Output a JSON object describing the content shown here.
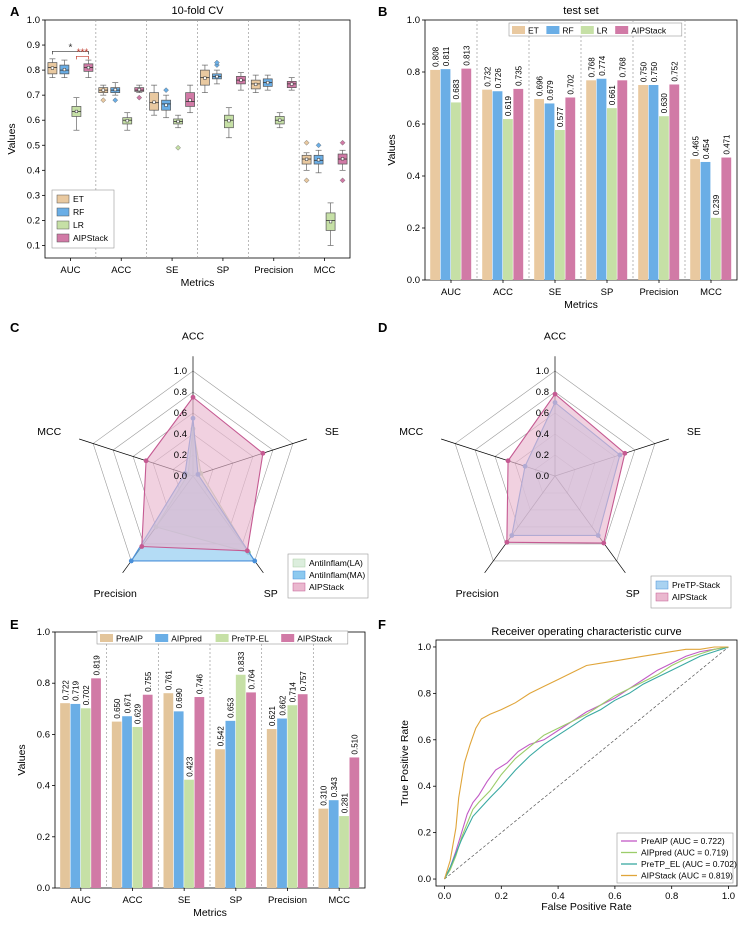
{
  "figure": {
    "panel_labels": [
      "A",
      "B",
      "C",
      "D",
      "E",
      "F"
    ],
    "colors": {
      "ET": "#e9c9a0",
      "RF": "#6aaee6",
      "LR": "#c6e0a6",
      "AIPStack": "#d17aa6",
      "PreAIP": "#e3c59b",
      "AIPpred": "#6aaee6",
      "PreTP-EL": "#c6e0a6",
      "sig_black": "#333333",
      "sig_red": "#c0392b"
    }
  },
  "chart_data": [
    {
      "id": "A",
      "type": "box",
      "title": "10-fold CV",
      "xlabel": "Metrics",
      "ylabel": "Values",
      "ylim": [
        0.05,
        1.0
      ],
      "yticks": [
        "0.1",
        "0.2",
        "0.3",
        "0.4",
        "0.5",
        "0.6",
        "0.7",
        "0.8",
        "0.9",
        "1.0"
      ],
      "categories": [
        "AUC",
        "ACC",
        "SE",
        "SP",
        "Precision",
        "MCC"
      ],
      "legend": [
        "ET",
        "RF",
        "LR",
        "AIPStack"
      ],
      "significance": [
        {
          "label": "*",
          "from": "ET",
          "to": "AIPStack",
          "color": "sig_black"
        },
        {
          "label": "***",
          "from": "LR",
          "to": "AIPStack",
          "color": "sig_red"
        }
      ],
      "series": [
        {
          "name": "ET",
          "boxes": [
            {
              "min": 0.77,
              "q1": 0.785,
              "med": 0.81,
              "q3": 0.83,
              "max": 0.845,
              "mean": 0.808,
              "out": []
            },
            {
              "min": 0.7,
              "q1": 0.71,
              "med": 0.72,
              "q3": 0.73,
              "max": 0.74,
              "mean": 0.72,
              "out": [
                0.68
              ]
            },
            {
              "min": 0.62,
              "q1": 0.64,
              "med": 0.67,
              "q3": 0.71,
              "max": 0.74,
              "mean": 0.672,
              "out": []
            },
            {
              "min": 0.71,
              "q1": 0.74,
              "med": 0.77,
              "q3": 0.8,
              "max": 0.82,
              "mean": 0.768,
              "out": []
            },
            {
              "min": 0.71,
              "q1": 0.725,
              "med": 0.745,
              "q3": 0.76,
              "max": 0.78,
              "mean": 0.743,
              "out": []
            },
            {
              "min": 0.4,
              "q1": 0.425,
              "med": 0.445,
              "q3": 0.46,
              "max": 0.47,
              "mean": 0.444,
              "out": [
                0.36,
                0.51
              ]
            }
          ]
        },
        {
          "name": "RF",
          "boxes": [
            {
              "min": 0.77,
              "q1": 0.785,
              "med": 0.8,
              "q3": 0.82,
              "max": 0.84,
              "mean": 0.802,
              "out": []
            },
            {
              "min": 0.7,
              "q1": 0.71,
              "med": 0.72,
              "q3": 0.73,
              "max": 0.75,
              "mean": 0.722,
              "out": [
                0.68
              ]
            },
            {
              "min": 0.61,
              "q1": 0.64,
              "med": 0.665,
              "q3": 0.68,
              "max": 0.7,
              "mean": 0.66,
              "out": [
                0.72
              ]
            },
            {
              "min": 0.745,
              "q1": 0.765,
              "med": 0.775,
              "q3": 0.785,
              "max": 0.8,
              "mean": 0.774,
              "out": [
                0.82,
                0.83
              ]
            },
            {
              "min": 0.72,
              "q1": 0.735,
              "med": 0.75,
              "q3": 0.765,
              "max": 0.78,
              "mean": 0.75,
              "out": []
            },
            {
              "min": 0.39,
              "q1": 0.425,
              "med": 0.44,
              "q3": 0.46,
              "max": 0.48,
              "mean": 0.442,
              "out": [
                0.5
              ]
            }
          ]
        },
        {
          "name": "LR",
          "boxes": [
            {
              "min": 0.56,
              "q1": 0.615,
              "med": 0.635,
              "q3": 0.655,
              "max": 0.69,
              "mean": 0.635,
              "out": []
            },
            {
              "min": 0.56,
              "q1": 0.585,
              "med": 0.6,
              "q3": 0.61,
              "max": 0.63,
              "mean": 0.598,
              "out": []
            },
            {
              "min": 0.57,
              "q1": 0.585,
              "med": 0.595,
              "q3": 0.605,
              "max": 0.62,
              "mean": 0.595,
              "out": [
                0.49
              ]
            },
            {
              "min": 0.53,
              "q1": 0.57,
              "med": 0.6,
              "q3": 0.62,
              "max": 0.65,
              "mean": 0.598,
              "out": []
            },
            {
              "min": 0.57,
              "q1": 0.585,
              "med": 0.6,
              "q3": 0.615,
              "max": 0.63,
              "mean": 0.6,
              "out": []
            },
            {
              "min": 0.1,
              "q1": 0.16,
              "med": 0.2,
              "q3": 0.23,
              "max": 0.27,
              "mean": 0.195,
              "out": []
            }
          ]
        },
        {
          "name": "AIPStack",
          "boxes": [
            {
              "min": 0.77,
              "q1": 0.795,
              "med": 0.81,
              "q3": 0.825,
              "max": 0.84,
              "mean": 0.81,
              "out": []
            },
            {
              "min": 0.71,
              "q1": 0.715,
              "med": 0.72,
              "q3": 0.73,
              "max": 0.74,
              "mean": 0.722,
              "out": [
                0.69
              ]
            },
            {
              "min": 0.63,
              "q1": 0.655,
              "med": 0.675,
              "q3": 0.71,
              "max": 0.74,
              "mean": 0.68,
              "out": []
            },
            {
              "min": 0.72,
              "q1": 0.745,
              "med": 0.76,
              "q3": 0.775,
              "max": 0.79,
              "mean": 0.76,
              "out": []
            },
            {
              "min": 0.72,
              "q1": 0.73,
              "med": 0.745,
              "q3": 0.755,
              "max": 0.77,
              "mean": 0.744,
              "out": []
            },
            {
              "min": 0.4,
              "q1": 0.425,
              "med": 0.445,
              "q3": 0.465,
              "max": 0.48,
              "mean": 0.446,
              "out": [
                0.36,
                0.51
              ]
            }
          ]
        }
      ]
    },
    {
      "id": "B",
      "type": "bar",
      "title": "test set",
      "xlabel": "Metrics",
      "ylabel": "Values",
      "ylim": [
        0.0,
        1.0
      ],
      "yticks": [
        "0.0",
        "0.2",
        "0.4",
        "0.6",
        "0.8",
        "1.0"
      ],
      "categories": [
        "AUC",
        "ACC",
        "SE",
        "SP",
        "Precision",
        "MCC"
      ],
      "series": [
        {
          "name": "ET",
          "values": [
            0.808,
            0.732,
            0.696,
            0.768,
            0.75,
            0.465
          ]
        },
        {
          "name": "RF",
          "values": [
            0.811,
            0.726,
            0.679,
            0.774,
            0.75,
            0.454
          ]
        },
        {
          "name": "LR",
          "values": [
            0.683,
            0.619,
            0.577,
            0.661,
            0.63,
            0.239
          ]
        },
        {
          "name": "AIPStack",
          "values": [
            0.813,
            0.735,
            0.702,
            0.768,
            0.752,
            0.471
          ]
        }
      ],
      "labels": [
        [
          "0.808",
          "0.732",
          "0.696",
          "0.768",
          "0.750",
          "0.465"
        ],
        [
          "0.811",
          "0.726",
          "0.679",
          "0.774",
          "0.750",
          "0.454"
        ],
        [
          "0.683",
          "0.619",
          "0.577",
          "0.661",
          "0.630",
          "0.239"
        ],
        [
          "0.813",
          "0.735",
          "0.702",
          "0.768",
          "0.752",
          "0.471"
        ]
      ]
    },
    {
      "id": "C",
      "type": "radar",
      "axes": [
        "ACC",
        "SE",
        "SP",
        "Precision",
        "MCC"
      ],
      "rticks": [
        "0.0",
        "0.2",
        "0.4",
        "0.6",
        "0.8",
        "1.0"
      ],
      "series": [
        {
          "name": "AntiInflam(LA)",
          "fill": "#dceedd",
          "stroke": "#a9cca4",
          "values": [
            0.45,
            0.08,
            0.9,
            0.6,
            0.05
          ]
        },
        {
          "name": "AntiInflam(MA)",
          "fill": "#8cc9ef",
          "stroke": "#4a90d9",
          "values": [
            0.55,
            0.05,
            1.0,
            1.0,
            0.08
          ]
        },
        {
          "name": "AIPStack",
          "fill": "#eab8cf",
          "stroke": "#c55a92",
          "values": [
            0.75,
            0.7,
            0.88,
            0.83,
            0.47
          ]
        }
      ]
    },
    {
      "id": "D",
      "type": "radar",
      "axes": [
        "ACC",
        "SE",
        "SP",
        "Precision",
        "MCC"
      ],
      "rticks": [
        "0.0",
        "0.2",
        "0.4",
        "0.6",
        "0.8",
        "1.0"
      ],
      "series": [
        {
          "name": "PreTP-Stack",
          "fill": "#a9d2f1",
          "stroke": "#4a90d9",
          "values": [
            0.7,
            0.65,
            0.7,
            0.7,
            0.3
          ]
        },
        {
          "name": "AIPStack",
          "fill": "#eab8cf",
          "stroke": "#c55a92",
          "values": [
            0.78,
            0.7,
            0.79,
            0.78,
            0.47
          ]
        }
      ]
    },
    {
      "id": "E",
      "type": "bar",
      "title": "",
      "xlabel": "Metrics",
      "ylabel": "Values",
      "ylim": [
        0.0,
        1.0
      ],
      "yticks": [
        "0.0",
        "0.2",
        "0.4",
        "0.6",
        "0.8",
        "1.0"
      ],
      "categories": [
        "AUC",
        "ACC",
        "SE",
        "SP",
        "Precision",
        "MCC"
      ],
      "series": [
        {
          "name": "PreAIP",
          "values": [
            0.722,
            0.65,
            0.761,
            0.542,
            0.621,
            0.31
          ]
        },
        {
          "name": "AIPpred",
          "values": [
            0.719,
            0.671,
            0.69,
            0.653,
            0.662,
            0.343
          ]
        },
        {
          "name": "PreTP-EL",
          "values": [
            0.702,
            0.629,
            0.423,
            0.833,
            0.714,
            0.281
          ]
        },
        {
          "name": "AIPStack",
          "values": [
            0.819,
            0.755,
            0.746,
            0.764,
            0.757,
            0.51
          ]
        }
      ],
      "labels": [
        [
          "0.722",
          "0.650",
          "0.761",
          "0.542",
          "0.621",
          "0.310"
        ],
        [
          "0.719",
          "0.671",
          "0.690",
          "0.653",
          "0.662",
          "0.343"
        ],
        [
          "0.702",
          "0.629",
          "0.423",
          "0.833",
          "0.714",
          "0.281"
        ],
        [
          "0.819",
          "0.755",
          "0.746",
          "0.764",
          "0.757",
          "0.510"
        ]
      ]
    },
    {
      "id": "F",
      "type": "line",
      "title": "Receiver operating characteristic curve",
      "xlabel": "False Positive Rate",
      "ylabel": "True Positive Rate",
      "xlim": [
        0.0,
        1.0
      ],
      "ylim": [
        0.0,
        1.0
      ],
      "ticks": [
        "0.0",
        "0.2",
        "0.4",
        "0.6",
        "0.8",
        "1.0"
      ],
      "series": [
        {
          "name": "PreAIP",
          "legend": "PreAIP (AUC = 0.722)",
          "color": "#c25bc6",
          "x": [
            0,
            0.02,
            0.04,
            0.06,
            0.08,
            0.1,
            0.12,
            0.15,
            0.18,
            0.22,
            0.26,
            0.3,
            0.35,
            0.4,
            0.45,
            0.5,
            0.55,
            0.6,
            0.65,
            0.7,
            0.75,
            0.8,
            0.85,
            0.9,
            0.95,
            1.0
          ],
          "y": [
            0,
            0.05,
            0.12,
            0.2,
            0.28,
            0.33,
            0.36,
            0.42,
            0.47,
            0.5,
            0.55,
            0.58,
            0.6,
            0.64,
            0.68,
            0.72,
            0.75,
            0.78,
            0.82,
            0.86,
            0.9,
            0.93,
            0.96,
            0.98,
            0.99,
            1.0
          ]
        },
        {
          "name": "AIPpred",
          "legend": "AIPpred (AUC = 0.719)",
          "color": "#9ccd6a",
          "x": [
            0,
            0.02,
            0.04,
            0.06,
            0.08,
            0.1,
            0.12,
            0.16,
            0.2,
            0.25,
            0.3,
            0.35,
            0.4,
            0.45,
            0.5,
            0.55,
            0.6,
            0.65,
            0.7,
            0.75,
            0.8,
            0.85,
            0.9,
            0.95,
            1.0
          ],
          "y": [
            0,
            0.04,
            0.1,
            0.18,
            0.24,
            0.3,
            0.33,
            0.38,
            0.45,
            0.52,
            0.57,
            0.62,
            0.65,
            0.68,
            0.71,
            0.75,
            0.79,
            0.82,
            0.85,
            0.88,
            0.92,
            0.95,
            0.97,
            0.99,
            1.0
          ]
        },
        {
          "name": "PreTP_EL",
          "legend": "PreTP_EL (AUC = 0.702)",
          "color": "#3aa9a2",
          "x": [
            0,
            0.02,
            0.04,
            0.06,
            0.08,
            0.1,
            0.13,
            0.16,
            0.2,
            0.25,
            0.3,
            0.35,
            0.4,
            0.45,
            0.5,
            0.55,
            0.6,
            0.65,
            0.7,
            0.75,
            0.8,
            0.85,
            0.9,
            0.95,
            1.0
          ],
          "y": [
            0,
            0.05,
            0.11,
            0.17,
            0.22,
            0.27,
            0.31,
            0.35,
            0.4,
            0.47,
            0.53,
            0.58,
            0.62,
            0.66,
            0.7,
            0.73,
            0.77,
            0.8,
            0.84,
            0.87,
            0.9,
            0.93,
            0.96,
            0.98,
            1.0
          ]
        },
        {
          "name": "AIPStack",
          "legend": "AIPStack (AUC = 0.819)",
          "color": "#e0a53a",
          "x": [
            0,
            0.02,
            0.04,
            0.05,
            0.07,
            0.09,
            0.11,
            0.13,
            0.16,
            0.2,
            0.25,
            0.3,
            0.35,
            0.4,
            0.45,
            0.5,
            0.55,
            0.6,
            0.65,
            0.7,
            0.75,
            0.8,
            0.85,
            0.9,
            0.95,
            1.0
          ],
          "y": [
            0,
            0.08,
            0.22,
            0.35,
            0.5,
            0.58,
            0.65,
            0.69,
            0.71,
            0.73,
            0.76,
            0.8,
            0.83,
            0.86,
            0.89,
            0.92,
            0.93,
            0.94,
            0.95,
            0.96,
            0.97,
            0.98,
            0.99,
            0.99,
            1.0,
            1.0
          ]
        }
      ]
    }
  ]
}
